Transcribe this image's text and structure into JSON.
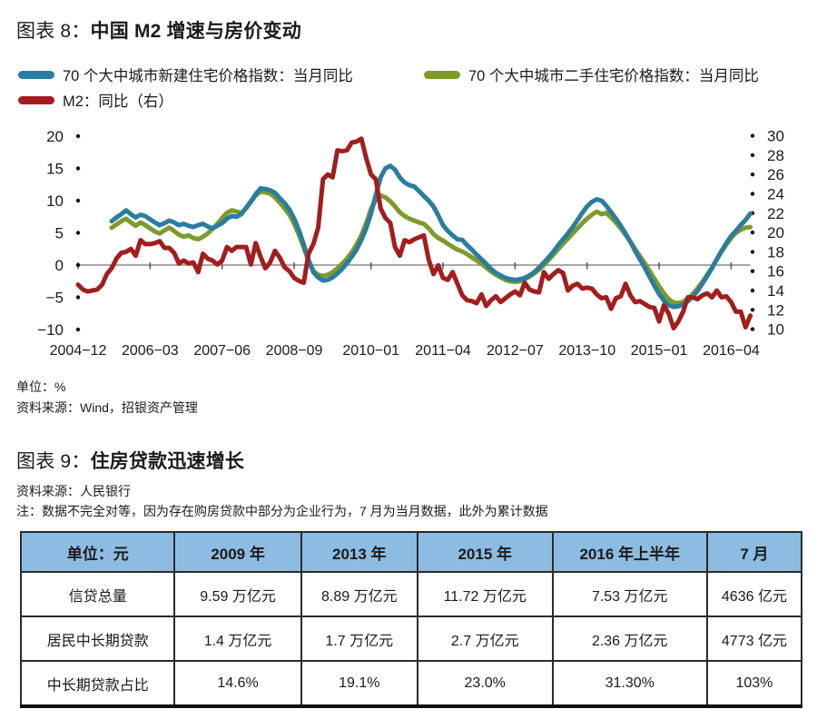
{
  "chart8": {
    "title_prefix": "图表 8：",
    "title": "中国 M2 增速与房价变动",
    "unit_note": "单位：%",
    "source": "资料来源：Wind，招银资产管理"
  },
  "chart_data": {
    "type": "line",
    "title": "中国 M2 增速与房价变动",
    "x_start": "2004-12",
    "x_freq": "monthly",
    "x_tick_labels": [
      "2004−12",
      "2006−03",
      "2007−06",
      "2008−09",
      "2010−01",
      "2011−04",
      "2012−07",
      "2013−10",
      "2015−01",
      "2016−04"
    ],
    "x_tick_month_index": [
      0,
      15,
      30,
      45,
      61,
      76,
      91,
      106,
      121,
      136
    ],
    "left_axis": {
      "ticks": [
        20,
        15,
        10,
        5,
        0,
        -5,
        -10
      ],
      "range": [
        -10,
        20
      ],
      "unit": "%"
    },
    "right_axis": {
      "ticks": [
        30,
        28,
        26,
        24,
        22,
        20,
        18,
        16,
        14,
        12,
        10
      ],
      "range": [
        10,
        30
      ],
      "unit": "%"
    },
    "grid": "none",
    "legend_position": "top",
    "series": [
      {
        "name": "70 个大中城市新建住宅价格指数：当月同比",
        "axis": "left",
        "color": "#2B7D9F",
        "values": [
          null,
          null,
          null,
          null,
          null,
          null,
          null,
          6.8,
          7.4,
          7.9,
          8.5,
          7.9,
          7.4,
          7.8,
          7.6,
          7.1,
          6.6,
          6.2,
          6.5,
          6.9,
          6.6,
          6.2,
          6.4,
          6.1,
          5.9,
          6.2,
          6.4,
          6.0,
          5.7,
          6.1,
          6.5,
          7.2,
          7.6,
          7.5,
          7.9,
          8.9,
          9.9,
          11.0,
          11.9,
          11.8,
          11.6,
          11.2,
          10.4,
          9.6,
          8.6,
          7.2,
          5.4,
          3.2,
          0.8,
          -1.1,
          -1.9,
          -2.4,
          -2.3,
          -1.9,
          -1.3,
          -0.6,
          0.3,
          1.3,
          2.4,
          3.9,
          5.7,
          8.0,
          10.9,
          13.6,
          15.0,
          15.4,
          14.8,
          13.6,
          12.8,
          12.4,
          12.2,
          11.5,
          10.7,
          10.0,
          9.1,
          7.7,
          6.2,
          5.3,
          4.6,
          4.0,
          3.9,
          3.1,
          2.4,
          1.6,
          0.9,
          0.2,
          -0.6,
          -1.2,
          -1.6,
          -2.0,
          -2.2,
          -2.3,
          -2.2,
          -2.0,
          -1.6,
          -1.1,
          -0.4,
          0.4,
          1.2,
          2.1,
          3.1,
          4.0,
          4.9,
          5.9,
          7.0,
          8.1,
          9.1,
          9.8,
          10.2,
          10.0,
          9.2,
          8.2,
          7.2,
          6.1,
          4.9,
          3.6,
          2.2,
          0.9,
          -0.4,
          -1.8,
          -3.2,
          -4.5,
          -5.5,
          -6.2,
          -6.5,
          -6.4,
          -6.1,
          -5.6,
          -4.9,
          -4.0,
          -2.9,
          -1.7,
          -0.5,
          0.9,
          2.2,
          3.4,
          4.5,
          5.3,
          6.2,
          7.0,
          8.0
        ]
      },
      {
        "name": "70 个大中城市二手住宅价格指数：当月同比",
        "axis": "left",
        "color": "#7D9B2A",
        "values": [
          null,
          null,
          null,
          null,
          null,
          null,
          null,
          5.8,
          6.3,
          6.8,
          7.2,
          6.6,
          6.1,
          6.6,
          6.2,
          5.7,
          5.2,
          4.9,
          5.4,
          5.8,
          5.3,
          4.7,
          4.4,
          4.6,
          4.2,
          4.0,
          4.4,
          4.9,
          5.6,
          6.4,
          7.3,
          8.1,
          8.5,
          8.3,
          8.1,
          8.8,
          9.8,
          10.8,
          11.4,
          11.3,
          11.1,
          10.5,
          9.7,
          8.8,
          7.8,
          6.4,
          4.7,
          2.7,
          0.6,
          -0.9,
          -1.5,
          -1.7,
          -1.5,
          -1.1,
          -0.5,
          0.2,
          1.0,
          2.0,
          3.2,
          4.6,
          6.5,
          8.7,
          10.2,
          10.8,
          10.5,
          9.9,
          9.1,
          8.2,
          7.6,
          7.2,
          6.9,
          6.6,
          6.4,
          5.7,
          4.8,
          4.2,
          3.8,
          3.3,
          2.8,
          2.4,
          2.1,
          1.7,
          1.2,
          0.7,
          0.2,
          -0.4,
          -1.0,
          -1.5,
          -1.9,
          -2.3,
          -2.5,
          -2.6,
          -2.5,
          -2.2,
          -1.8,
          -1.3,
          -0.7,
          0.0,
          0.8,
          1.6,
          2.5,
          3.3,
          4.1,
          4.9,
          5.7,
          6.5,
          7.2,
          7.8,
          8.3,
          7.9,
          8.1,
          7.4,
          6.6,
          5.7,
          4.7,
          3.6,
          2.5,
          1.4,
          0.3,
          -0.9,
          -2.1,
          -3.3,
          -4.4,
          -5.3,
          -5.8,
          -5.9,
          -5.7,
          -5.2,
          -4.5,
          -3.6,
          -2.6,
          -1.5,
          -0.4,
          0.9,
          2.1,
          3.2,
          4.2,
          5.0,
          5.5,
          5.8,
          5.9
        ]
      },
      {
        "name": "M2：同比（右）",
        "axis": "right",
        "color": "#A31D1D",
        "values": [
          14.6,
          14.1,
          13.9,
          14.0,
          14.1,
          14.6,
          15.7,
          16.3,
          17.3,
          17.9,
          18.0,
          18.3,
          17.6,
          19.2,
          18.8,
          18.8,
          18.9,
          19.1,
          18.4,
          18.4,
          17.9,
          16.8,
          17.1,
          16.8,
          16.9,
          15.9,
          17.8,
          17.3,
          17.1,
          16.7,
          17.1,
          18.5,
          18.1,
          18.5,
          18.5,
          18.5,
          16.7,
          18.9,
          17.5,
          16.3,
          16.9,
          18.1,
          17.4,
          16.4,
          16.0,
          15.3,
          15.0,
          14.8,
          17.8,
          18.8,
          20.5,
          25.5,
          26.0,
          25.7,
          28.5,
          28.4,
          28.5,
          29.3,
          29.4,
          29.7,
          27.7,
          26.0,
          25.5,
          22.5,
          21.5,
          21.0,
          18.5,
          17.6,
          19.2,
          19.0,
          19.3,
          19.5,
          19.7,
          17.2,
          15.7,
          16.6,
          15.3,
          15.1,
          15.9,
          14.7,
          13.5,
          13.0,
          12.9,
          12.7,
          13.6,
          12.4,
          13.0,
          13.4,
          12.8,
          13.2,
          13.6,
          13.9,
          13.5,
          14.8,
          14.1,
          13.9,
          13.8,
          15.9,
          15.2,
          15.7,
          16.1,
          15.8,
          14.0,
          14.5,
          14.7,
          14.2,
          14.3,
          14.2,
          13.6,
          13.2,
          13.3,
          12.1,
          13.2,
          13.4,
          14.7,
          13.5,
          12.8,
          12.9,
          12.6,
          12.3,
          12.2,
          10.8,
          12.5,
          11.6,
          10.1,
          10.8,
          11.8,
          13.3,
          13.3,
          13.1,
          13.5,
          13.7,
          13.3,
          14.0,
          13.3,
          13.4,
          12.8,
          11.8,
          11.8,
          10.2,
          11.4
        ]
      }
    ]
  },
  "chart9": {
    "title_prefix": "图表 9：",
    "title": "住房贷款迅速增长",
    "source": "资料来源：人民银行",
    "note": "注：数据不完全对等，因为存在购房贷款中部分为企业行为，7 月为当月数据，此外为累计数据",
    "table": {
      "header_bg": "#8DBCE2",
      "columns": [
        "单位：元",
        "2009 年",
        "2013 年",
        "2015 年",
        "2016 年上半年",
        "7 月"
      ],
      "rows": [
        {
          "label": "信贷总量",
          "values": [
            "9.59 万亿元",
            "8.89 万亿元",
            "11.72 万亿元",
            "7.53 万亿元",
            "4636 亿元"
          ]
        },
        {
          "label": "居民中长期贷款",
          "values": [
            "1.4 万亿元",
            "1.7 万亿元",
            "2.7 万亿元",
            "2.36 万亿元",
            "4773 亿元"
          ]
        },
        {
          "label": "中长期贷款占比",
          "values": [
            "14.6%",
            "19.1%",
            "23.0%",
            "31.30%",
            "103%"
          ]
        }
      ]
    }
  }
}
